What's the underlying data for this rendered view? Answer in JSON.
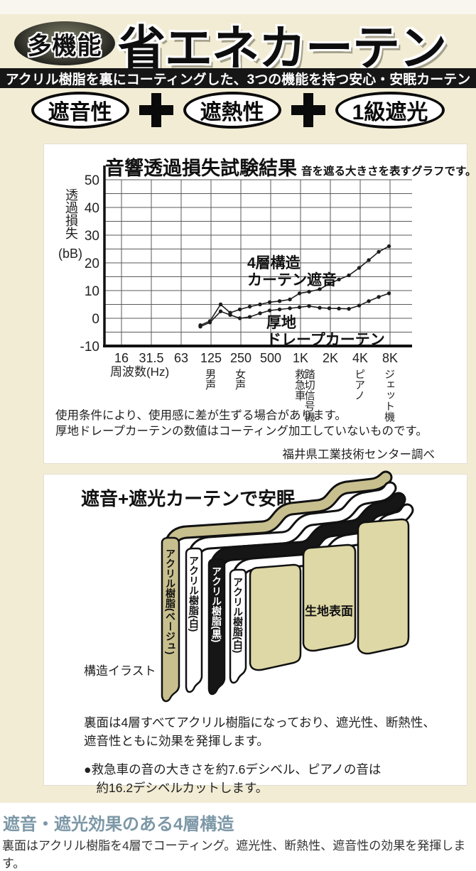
{
  "header": {
    "badge": "多機能",
    "title": "省エネカーテン",
    "subtitle": "アクリル樹脂を裏にコーティングした、3つの機能を持つ安心・安眠カーテン",
    "features": [
      "遮音性",
      "遮熱性",
      "1級遮光"
    ],
    "plus_icon": "plus-cross",
    "colors": {
      "bar_bg": "#161616",
      "page_bg": "#f2ecd5"
    }
  },
  "chart_data": {
    "type": "line",
    "title": "音響透過損失試験結果",
    "subtitle": "音を遮る大きさを表すグラフです。",
    "ylabel": "透過損失",
    "ylabel_unit": "(bB)",
    "xlabel": "周波数(Hz)",
    "x_scale": "octave-log-from-16Hz",
    "x_ticks": [
      "16",
      "31.5",
      "63",
      "125",
      "250",
      "500",
      "1K",
      "2K",
      "4K",
      "8K"
    ],
    "y_ticks": [
      50,
      40,
      30,
      20,
      10,
      0,
      -10
    ],
    "ylim": [
      -10,
      50
    ],
    "grid": "on, 5 dB steps and octave steps",
    "sound_markers": [
      {
        "label": "男声",
        "freq": 125
      },
      {
        "label": "女声",
        "freq": 250
      },
      {
        "label": "救急車",
        "freq": 1000
      },
      {
        "label": "踏切信号機",
        "freq": 1250
      },
      {
        "label": "ピアノ",
        "freq": 4000
      },
      {
        "label": "ジェット機",
        "freq": 8000
      }
    ],
    "series": [
      {
        "name": "4層構造カーテン遮音",
        "label": "4層構造\nカーテン遮音",
        "frequencies": [
          100,
          125,
          160,
          200,
          250,
          315,
          400,
          500,
          630,
          800,
          1000,
          1250,
          1600,
          2000,
          2500,
          3150,
          4000,
          5000,
          6300,
          8000
        ],
        "values": [
          -2.5,
          -1,
          5,
          2,
          3.2,
          4.2,
          5,
          5.8,
          6.2,
          6.8,
          9,
          9.6,
          10.5,
          12.5,
          14,
          15.5,
          18.2,
          21,
          24,
          26
        ]
      },
      {
        "name": "厚地ドレープカーテン",
        "label": "厚地\nドレープカーテン",
        "frequencies": [
          100,
          125,
          160,
          200,
          250,
          315,
          400,
          500,
          630,
          800,
          1000,
          1250,
          1600,
          2000,
          2500,
          3150,
          4000,
          5000,
          6300,
          8000
        ],
        "values": [
          -3,
          -1.5,
          2.5,
          1.2,
          0,
          0.5,
          1.8,
          2.8,
          3.2,
          3.6,
          4,
          4.4,
          3.8,
          3.6,
          3.5,
          3.4,
          4.6,
          6.2,
          7.7,
          9
        ]
      }
    ],
    "notes": "使用条件により、使用感に差が生ずる場合があります。\n厚地ドレープカーテンの数値はコーティング加工していないものです。",
    "source": "福井県工業技術センター調べ"
  },
  "illustration": {
    "title": "遮音+遮光カーテンで安眠",
    "caption": "構造イラスト",
    "layers": [
      "アクリル樹脂(ベージュ)",
      "アクリル樹脂(白)",
      "アクリル樹脂(黒)",
      "アクリル樹脂(白)"
    ],
    "surface_label": "生地表面",
    "colors": {
      "layer_beige": "#c8bf8f",
      "fabric_beige": "#ded8a6",
      "layer_black": "#161616",
      "layer_white": "#ffffff"
    },
    "body1": "裏面は4層すべてアクリル樹脂になっており、遮光性、断熱性、\n遮音性ともに効果を発揮します。",
    "body2": "●救急車の音の大きさを約7.6デシベル、ピアノの音は\n　約16.2デシベルカットします。"
  },
  "footer": {
    "heading": "遮音・遮光効果のある4層構造",
    "heading_color": "#7d98a7",
    "body": "裏面はアクリル樹脂を4層でコーティング。遮光性、断熱性、遮音性の効果を発揮します。"
  }
}
